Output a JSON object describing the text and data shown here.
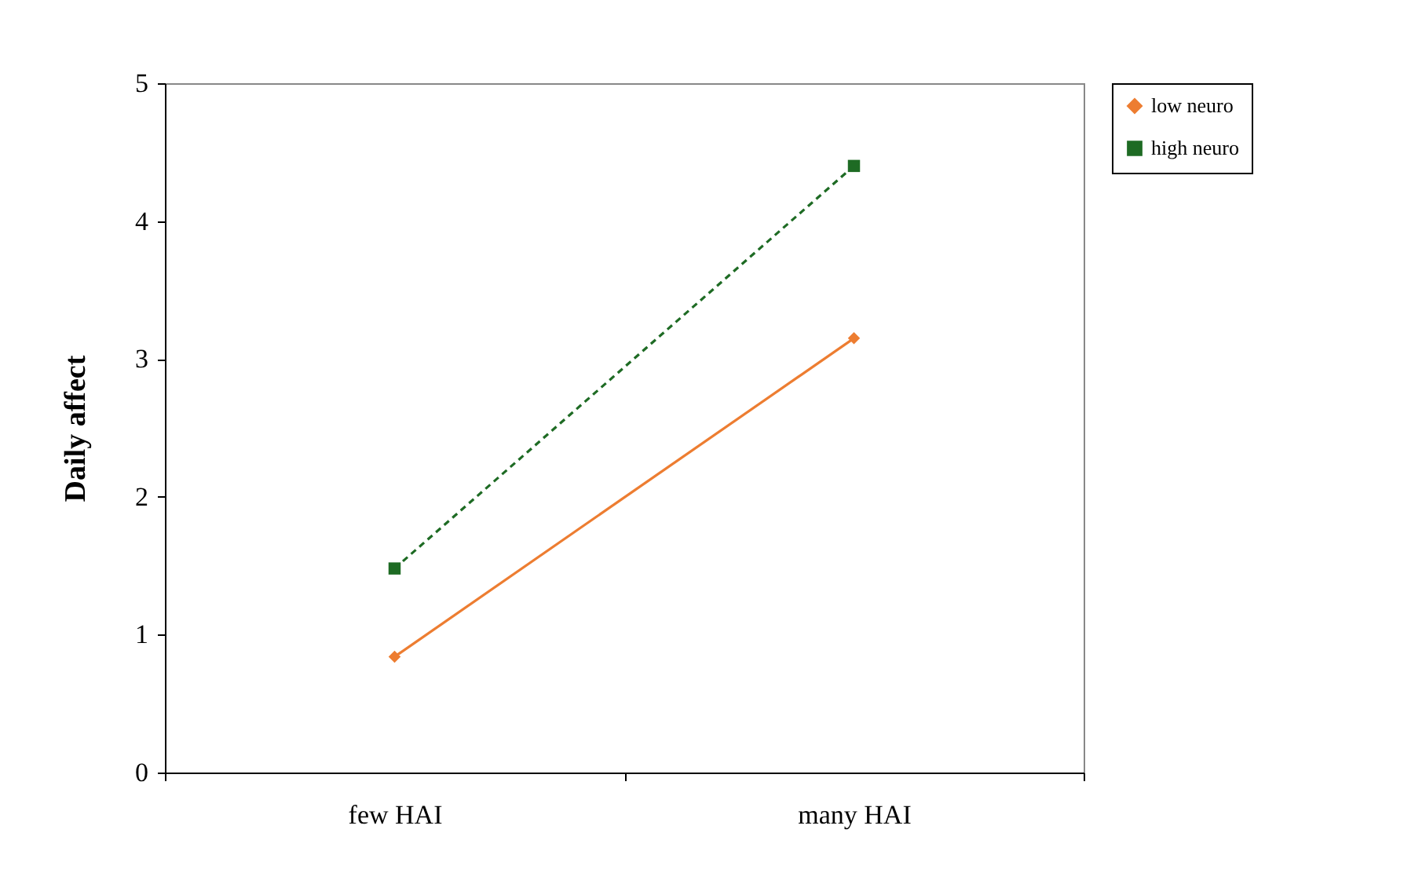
{
  "chart_data": {
    "type": "line",
    "ylabel": "Daily  affect",
    "categories": [
      "few HAI",
      "many HAI"
    ],
    "series": [
      {
        "name": "low neuro",
        "color": "#ed7d31",
        "values": [
          0.84,
          3.15
        ],
        "marker": "diamond",
        "line_style": "solid"
      },
      {
        "name": "high neuro",
        "color": "#1e6b24",
        "values": [
          1.48,
          4.4
        ],
        "marker": "square",
        "line_style": "dashed"
      }
    ],
    "ylim": [
      0,
      5
    ],
    "yticks": [
      0,
      1,
      2,
      3,
      4,
      5
    ],
    "grid": false,
    "legend": "right"
  }
}
